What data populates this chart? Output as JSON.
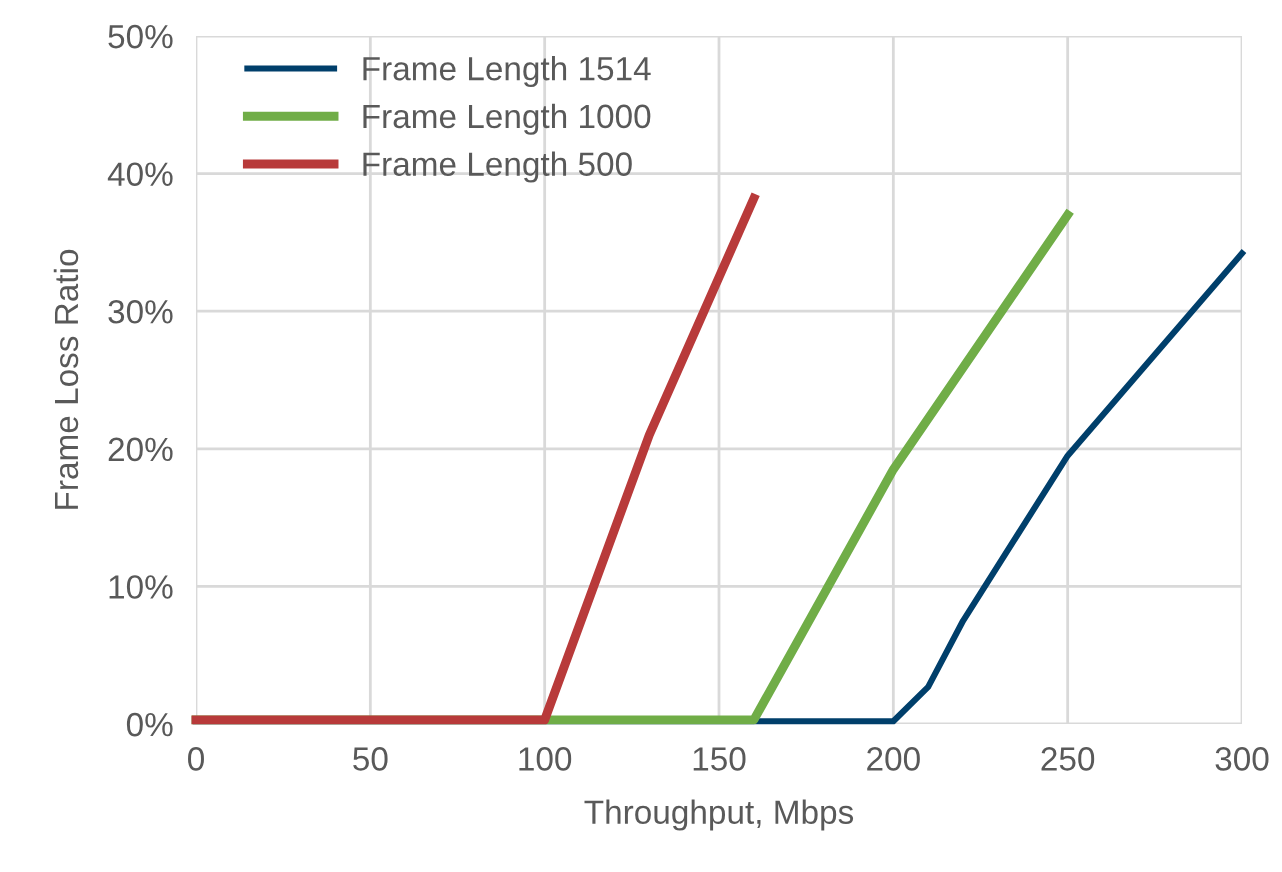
{
  "chart_data": {
    "type": "line",
    "xlabel": "Throughput, Mbps",
    "ylabel": "Frame Loss Ratio",
    "series": [
      {
        "name": "Frame Length 1514",
        "color": "#003f6b",
        "x": [
          0,
          200,
          210,
          220,
          250,
          300
        ],
        "values": [
          0.2,
          0.2,
          2.7,
          7.5,
          19.5,
          34.2
        ]
      },
      {
        "name": "Frame Length 1000",
        "color": "#70ad47",
        "x": [
          0,
          160,
          200,
          250
        ],
        "values": [
          0.3,
          0.3,
          18.5,
          37
        ]
      },
      {
        "name": "Frame Length 500",
        "color": "#b83a3a",
        "x": [
          0,
          100,
          130,
          160
        ],
        "values": [
          0.3,
          0.3,
          21,
          38.2
        ]
      }
    ],
    "xlim": [
      0,
      300
    ],
    "xticks": [
      0,
      50,
      100,
      150,
      200,
      250,
      300
    ],
    "ylim": [
      0,
      50
    ],
    "yticks": [
      {
        "value": 0,
        "label": "0%"
      },
      {
        "value": 10,
        "label": "10%"
      },
      {
        "value": 20,
        "label": "20%"
      },
      {
        "value": 30,
        "label": "30%"
      },
      {
        "value": 40,
        "label": "40%"
      },
      {
        "value": 50,
        "label": "50%"
      }
    ],
    "grid": true,
    "legend": "top left",
    "marker": "none",
    "line_style": "solid"
  }
}
